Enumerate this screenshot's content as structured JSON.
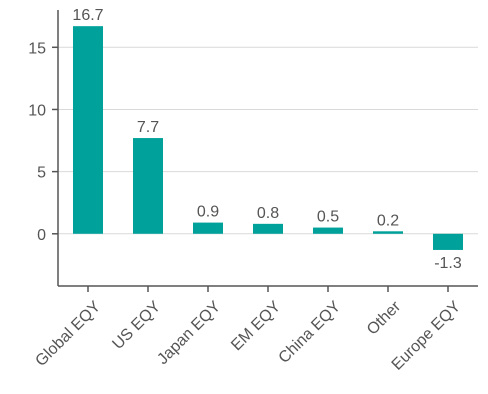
{
  "chart_data": {
    "type": "bar",
    "categories": [
      "Global EQY",
      "US EQY",
      "Japan EQY",
      "EM EQY",
      "China EQY",
      "Other",
      "Europe EQY"
    ],
    "values": [
      16.7,
      7.7,
      0.9,
      0.8,
      0.5,
      0.2,
      -1.3
    ],
    "value_labels": [
      "16.7",
      "7.7",
      "0.9",
      "0.8",
      "0.5",
      "0.2",
      "-1.3"
    ],
    "yticks": [
      0,
      5,
      10,
      15
    ],
    "ytick_labels": [
      "0",
      "5",
      "10",
      "15"
    ],
    "ylim": [
      -4.2,
      18
    ],
    "grid": true,
    "title": "",
    "xlabel": "",
    "ylabel": "",
    "colors": {
      "bar": "#00A19A",
      "grid": "#d9d9d9",
      "axis": "#555555",
      "text": "#555555"
    }
  }
}
